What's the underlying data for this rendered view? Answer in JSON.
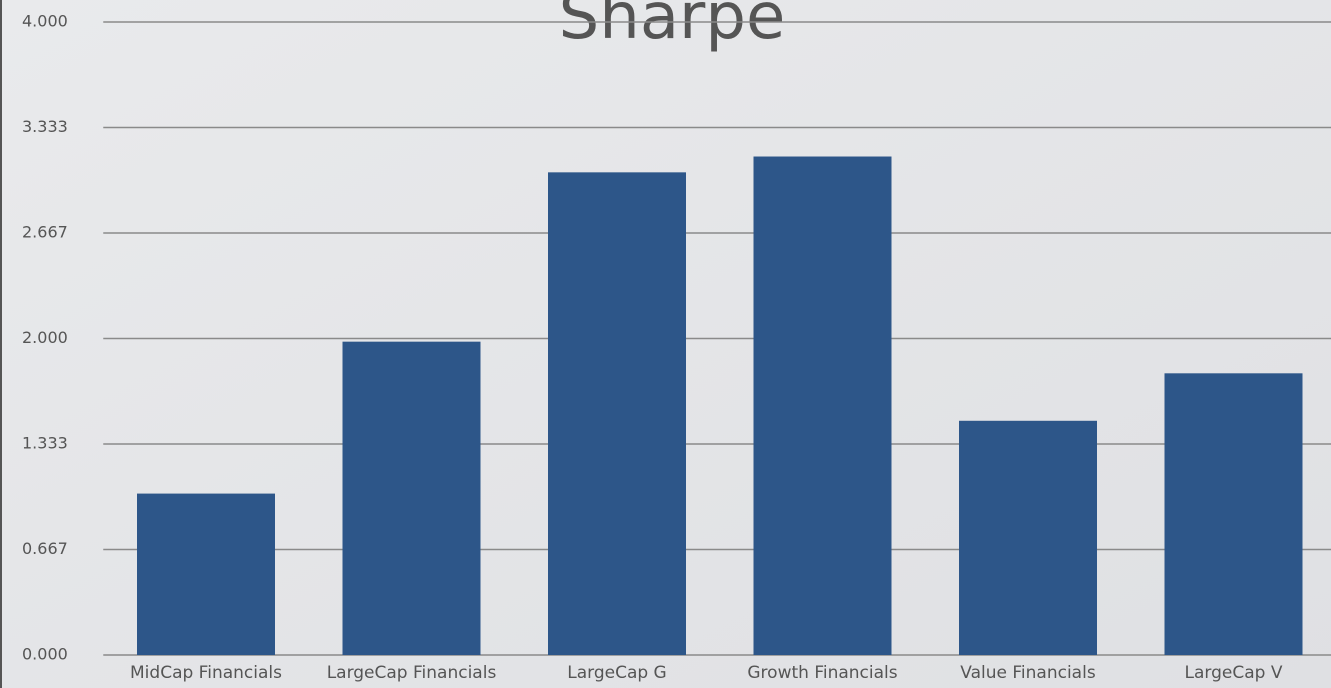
{
  "chart_data": {
    "type": "bar",
    "title": "Sharpe",
    "categories": [
      "MidCap Financials",
      "LargeCap Financials",
      "LargeCap G",
      "Growth Financials",
      "Value Financials",
      "LargeCap V"
    ],
    "values": [
      1.02,
      1.98,
      3.05,
      3.15,
      1.48,
      1.78
    ],
    "color": "#2d5689",
    "ylim": [
      0,
      4
    ],
    "yticks": [
      {
        "value": 0,
        "label": "0.000"
      },
      {
        "value": 0.667,
        "label": "0.667"
      },
      {
        "value": 1.333,
        "label": "1.333"
      },
      {
        "value": 2,
        "label": "2.000"
      },
      {
        "value": 2.667,
        "label": "2.667"
      },
      {
        "value": 3.333,
        "label": "3.333"
      },
      {
        "value": 4,
        "label": "4.000"
      }
    ],
    "grid": true
  }
}
